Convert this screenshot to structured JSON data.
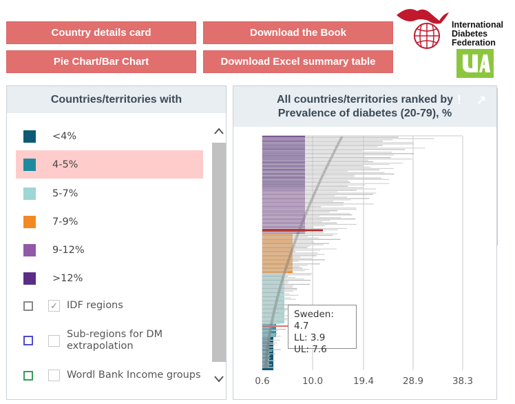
{
  "buttons": {
    "country_details": "Country details card",
    "download_book": "Download the Book",
    "pie_bar": "Pie Chart/Bar Chart",
    "download_excel": "Download Excel summary table"
  },
  "logo": {
    "idf_line1": "International",
    "idf_line2": "Diabetes",
    "idf_line3": "Federation"
  },
  "left_panel": {
    "title": "Countries/territories with",
    "legend": [
      {
        "label": "<4%",
        "color": "#0e5a74"
      },
      {
        "label": "4-5%",
        "color": "#1d8a9e"
      },
      {
        "label": "5-7%",
        "color": "#9dd6d4"
      },
      {
        "label": "7-9%",
        "color": "#f28a24"
      },
      {
        "label": "9-12%",
        "color": "#9159a8"
      },
      {
        "label": ">12%",
        "color": "#5a2d86"
      }
    ],
    "options": [
      {
        "label": "IDF regions",
        "box_color": "#888888",
        "checked": true
      },
      {
        "label": "Sub-regions for DM extrapolation",
        "box_color": "#4b4bd0",
        "checked": false
      },
      {
        "label": "Wordl Bank Income groups",
        "box_color": "#3a9a5b",
        "checked": false
      }
    ]
  },
  "right_panel": {
    "title_line1": "All countries/territories ranked by",
    "title_line2": "Prevalence of diabetes (20-79), %"
  },
  "chart_data": {
    "type": "bar",
    "orientation": "horizontal",
    "x_ticks": [
      "0.6",
      "10.0",
      "19.4",
      "28.9",
      "38.3"
    ],
    "xlim": [
      0.6,
      38.3
    ],
    "grid": true,
    "highlighted": {
      "name": "Sweden",
      "value": 4.7,
      "ll": 3.9,
      "ul": 7.6
    },
    "tooltip": {
      "line1": "Sweden: 4.7",
      "line2": "LL: 3.9",
      "line3": "UL: 7.6"
    }
  }
}
